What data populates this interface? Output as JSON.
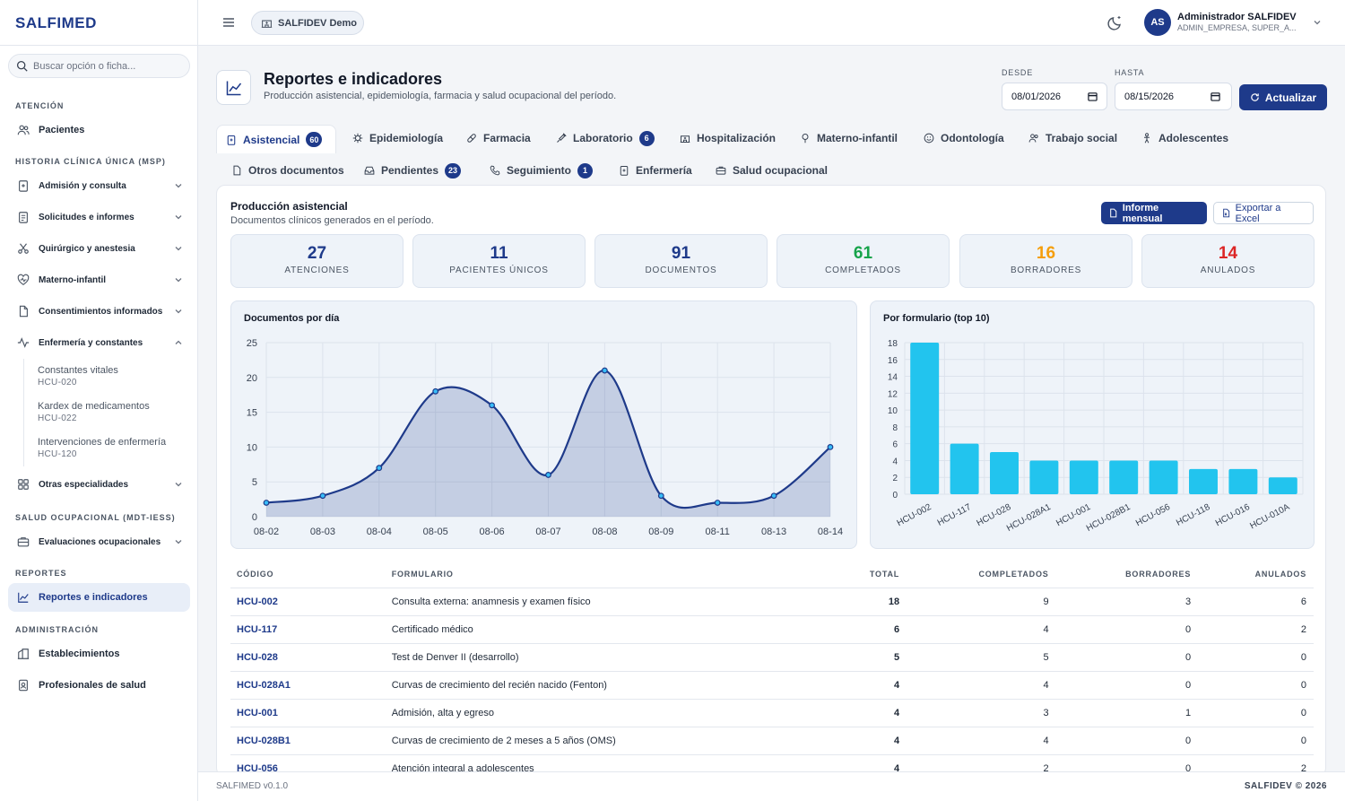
{
  "app": {
    "logo": "SALFIMED",
    "tenant": "SALFIDEV Demo"
  },
  "search": {
    "placeholder": "Buscar opción o ficha..."
  },
  "user": {
    "initials": "AS",
    "name": "Administrador SALFIDEV",
    "roles": "ADMIN_EMPRESA, SUPER_A..."
  },
  "sidebar": {
    "atencion": "ATENCIÓN",
    "pacientes": "Pacientes",
    "hcu": "HISTORIA CLÍNICA ÚNICA (MSP)",
    "admision": "Admisión y consulta",
    "solicitudes": "Solicitudes e informes",
    "quirurgico": "Quirúrgico y anestesia",
    "materno": "Materno-infantil",
    "consentimientos": "Consentimientos informados",
    "enfermeria": "Enfermería y constantes",
    "sub": [
      {
        "label": "Constantes vitales",
        "code": "HCU-020"
      },
      {
        "label": "Kardex de medicamentos",
        "code": "HCU-022"
      },
      {
        "label": "Intervenciones de enfermería",
        "code": "HCU-120"
      }
    ],
    "otras": "Otras especialidades",
    "salud_ocup": "SALUD OCUPACIONAL (MDT-IESS)",
    "evaluaciones": "Evaluaciones ocupacionales",
    "reportes_sec": "REPORTES",
    "reportes": "Reportes e indicadores",
    "admin_sec": "ADMINISTRACIÓN",
    "establecimientos": "Establecimientos",
    "profesionales": "Profesionales de salud"
  },
  "page": {
    "title": "Reportes e indicadores",
    "subtitle": "Producción asistencial, epidemiología, farmacia y salud ocupacional del período."
  },
  "filters": {
    "desde_label": "DESDE",
    "desde": "08/01/2026",
    "hasta_label": "HASTA",
    "hasta": "08/15/2026",
    "update": "Actualizar"
  },
  "tabs": {
    "asistencial": "Asistencial",
    "asistencial_badge": "60",
    "epidemiologia": "Epidemiología",
    "farmacia": "Farmacia",
    "laboratorio": "Laboratorio",
    "laboratorio_badge": "6",
    "hospitalizacion": "Hospitalización",
    "materno": "Materno-infantil",
    "odontologia": "Odontología",
    "trabajo": "Trabajo social",
    "adolescentes": "Adolescentes",
    "otros": "Otros documentos",
    "pendientes": "Pendientes",
    "pendientes_badge": "23",
    "seguimiento": "Seguimiento",
    "seguimiento_badge": "1",
    "enfermeria": "Enfermería",
    "ocupacional": "Salud ocupacional"
  },
  "section": {
    "title": "Producción asistencial",
    "subtitle": "Documentos clínicos generados en el período.",
    "informe": "Informe mensual",
    "exportar": "Exportar a Excel"
  },
  "stats": [
    {
      "value": "27",
      "label": "ATENCIONES",
      "color": "#1e3a8a"
    },
    {
      "value": "11",
      "label": "PACIENTES ÚNICOS",
      "color": "#1e3a8a"
    },
    {
      "value": "91",
      "label": "DOCUMENTOS",
      "color": "#1e3a8a"
    },
    {
      "value": "61",
      "label": "COMPLETADOS",
      "color": "#16a34a"
    },
    {
      "value": "16",
      "label": "BORRADORES",
      "color": "#f59e0b"
    },
    {
      "value": "14",
      "label": "ANULADOS",
      "color": "#dc2626"
    }
  ],
  "chart_data": [
    {
      "type": "area",
      "title": "Documentos por día",
      "x": [
        "08-02",
        "08-03",
        "08-04",
        "08-05",
        "08-06",
        "08-07",
        "08-08",
        "08-09",
        "08-11",
        "08-13",
        "08-14"
      ],
      "values": [
        2,
        3,
        7,
        18,
        16,
        6,
        21,
        3,
        2,
        3,
        10
      ],
      "ylim": [
        0,
        25
      ],
      "yticks": [
        0,
        5,
        10,
        15,
        20,
        25
      ],
      "color": "#1e3a8a"
    },
    {
      "type": "bar",
      "title": "Por formulario (top 10)",
      "categories": [
        "HCU-002",
        "HCU-117",
        "HCU-028",
        "HCU-028A1",
        "HCU-001",
        "HCU-028B1",
        "HCU-056",
        "HCU-118",
        "HCU-016",
        "HCU-010A"
      ],
      "values": [
        18,
        6,
        5,
        4,
        4,
        4,
        4,
        3,
        3,
        2
      ],
      "ylim": [
        0,
        18
      ],
      "yticks": [
        0,
        2,
        4,
        6,
        8,
        10,
        12,
        14,
        16,
        18
      ],
      "color": "#22c4ee"
    }
  ],
  "table": {
    "headers": [
      "CÓDIGO",
      "FORMULARIO",
      "TOTAL",
      "COMPLETADOS",
      "BORRADORES",
      "ANULADOS"
    ],
    "rows": [
      [
        "HCU-002",
        "Consulta externa: anamnesis y examen físico",
        "18",
        "9",
        "3",
        "6"
      ],
      [
        "HCU-117",
        "Certificado médico",
        "6",
        "4",
        "0",
        "2"
      ],
      [
        "HCU-028",
        "Test de Denver II (desarrollo)",
        "5",
        "5",
        "0",
        "0"
      ],
      [
        "HCU-028A1",
        "Curvas de crecimiento del recién nacido (Fenton)",
        "4",
        "4",
        "0",
        "0"
      ],
      [
        "HCU-001",
        "Admisión, alta y egreso",
        "4",
        "3",
        "1",
        "0"
      ],
      [
        "HCU-028B1",
        "Curvas de crecimiento de 2 meses a 5 años (OMS)",
        "4",
        "4",
        "0",
        "0"
      ],
      [
        "HCU-056",
        "Atención integral a adolescentes",
        "4",
        "2",
        "0",
        "2"
      ]
    ]
  },
  "footer": {
    "version": "SALFIMED v0.1.0",
    "copy": "SALFIDEV © 2026"
  }
}
